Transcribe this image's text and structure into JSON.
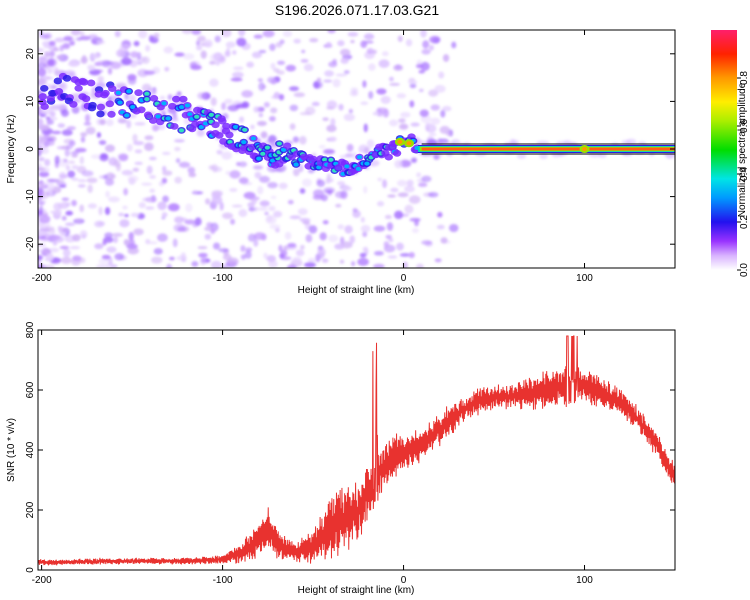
{
  "title": "S196.2026.071.17.03.G21",
  "chart_data": [
    {
      "type": "heatmap",
      "title": "S196.2026.071.17.03.G21",
      "xlabel": "Height of straight line (km)",
      "ylabel": "Frequency (Hz)",
      "xlim": [
        -202,
        150
      ],
      "ylim": [
        -25,
        25
      ],
      "xticks": [
        -200,
        -100,
        0,
        100
      ],
      "yticks": [
        -20,
        -10,
        0,
        10,
        20
      ],
      "xtick_labels": [
        "-200",
        "-100",
        "0",
        "100"
      ],
      "ytick_labels": [
        "-20",
        "-10",
        "0",
        "10",
        "20"
      ],
      "ridge_x": [
        -202,
        -190,
        -175,
        -160,
        -150,
        -140,
        -130,
        -120,
        -110,
        -100,
        -90,
        -80,
        -70,
        -60,
        -50,
        -40,
        -30,
        -25,
        -20,
        -15,
        -10,
        -5,
        0,
        5,
        10,
        20,
        150
      ],
      "ridge_y": [
        12,
        12,
        11,
        10,
        9,
        8,
        7.5,
        7,
        6,
        4,
        2,
        0,
        -1,
        -2,
        -2.5,
        -3.5,
        -4.5,
        -3,
        -2,
        -1,
        -0.5,
        0,
        1.5,
        1.5,
        0,
        0,
        0
      ],
      "colorbar": {
        "label": "Normalized spectral amplitude",
        "range": [
          0,
          1
        ],
        "ticks": [
          0.0,
          0.2,
          0.4,
          0.6,
          0.8
        ],
        "tick_labels": [
          "0.0",
          "0.2",
          "0.4",
          "0.6",
          "0.8"
        ]
      }
    },
    {
      "type": "line",
      "xlabel": "Height of straight line (km)",
      "ylabel": "SNR (10 * v/v)",
      "xlim": [
        -202,
        150
      ],
      "ylim": [
        0,
        800
      ],
      "xticks": [
        -200,
        -100,
        0,
        100
      ],
      "yticks": [
        0,
        200,
        400,
        600,
        800
      ],
      "xtick_labels": [
        "-200",
        "-100",
        "0",
        "100"
      ],
      "ytick_labels": [
        "0",
        "200",
        "400",
        "600",
        "800"
      ],
      "color": "#e8322f",
      "series": [
        {
          "name": "SNR",
          "x": [
            -202,
            -160,
            -120,
            -100,
            -90,
            -80,
            -75,
            -70,
            -60,
            -50,
            -40,
            -35,
            -30,
            -25,
            -20,
            -15,
            -10,
            -5,
            0,
            10,
            20,
            30,
            40,
            50,
            60,
            70,
            80,
            90,
            100,
            110,
            120,
            130,
            140,
            150
          ],
          "y": [
            25,
            30,
            30,
            35,
            55,
            100,
            140,
            90,
            55,
            80,
            140,
            165,
            180,
            200,
            260,
            310,
            350,
            375,
            385,
            420,
            470,
            520,
            560,
            575,
            580,
            590,
            600,
            610,
            620,
            590,
            560,
            500,
            420,
            310
          ],
          "amplitude": [
            10,
            10,
            10,
            15,
            30,
            60,
            60,
            45,
            30,
            55,
            90,
            110,
            100,
            100,
            100,
            90,
            80,
            70,
            60,
            50,
            50,
            45,
            40,
            40,
            40,
            50,
            60,
            60,
            50,
            50,
            40,
            40,
            40,
            40
          ]
        }
      ]
    }
  ]
}
